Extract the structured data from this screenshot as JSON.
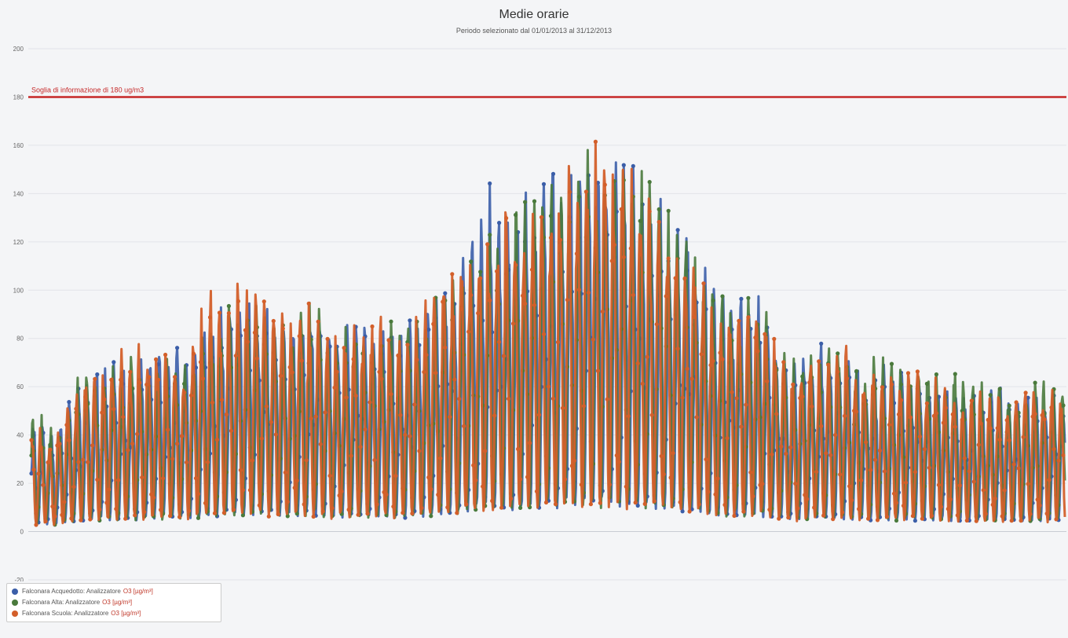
{
  "chart_data": {
    "type": "line",
    "title": "Medie orarie",
    "subtitle": "Periodo selezionato dal 01/01/2013 al 31/12/2013",
    "ylim": [
      -20,
      200
    ],
    "y_ticks": [
      -20,
      0,
      20,
      40,
      60,
      80,
      100,
      120,
      140,
      160,
      180,
      200
    ],
    "grid": true,
    "legend_position": "bottom-left",
    "threshold": {
      "value": 180,
      "label": "Soglia di informazione di 180 ug/m3",
      "color": "#c62828"
    },
    "x_range": [
      "01/01/2013",
      "31/12/2013"
    ],
    "series": [
      {
        "name": "Falconara Acquedotto: Analizzatore",
        "unit": "O3 [µg/m³]",
        "color": "#3b5ea8",
        "daily_max_profile": [
          48,
          44,
          70,
          73,
          72,
          80,
          78,
          96,
          100,
          106,
          92,
          104,
          88,
          90,
          90,
          92,
          100,
          112,
          150,
          140,
          147,
          154,
          172,
          168,
          153,
          140,
          130,
          104,
          100,
          99,
          70,
          78,
          80,
          72,
          70,
          72,
          70,
          62,
          60,
          62,
          62,
          64
        ]
      },
      {
        "name": "Falconara Alta: Analizzatore",
        "unit": "O3 [µg/m³]",
        "color": "#4a7a3c",
        "daily_max_profile": [
          50,
          46,
          70,
          72,
          74,
          78,
          78,
          96,
          100,
          104,
          92,
          100,
          88,
          88,
          90,
          90,
          100,
          112,
          128,
          138,
          145,
          152,
          162,
          156,
          155,
          150,
          128,
          104,
          100,
          99,
          72,
          78,
          80,
          75,
          72,
          74,
          72,
          66,
          62,
          64,
          66,
          64
        ]
      },
      {
        "name": "Falconara Scuola: Analizzatore",
        "unit": "O3 [µg/m³]",
        "color": "#d35f2a",
        "daily_max_profile": [
          46,
          42,
          66,
          74,
          80,
          80,
          76,
          100,
          102,
          106,
          90,
          100,
          86,
          88,
          90,
          90,
          104,
          118,
          130,
          140,
          145,
          155,
          168,
          158,
          152,
          142,
          124,
          104,
          100,
          97,
          68,
          76,
          80,
          72,
          68,
          70,
          66,
          60,
          58,
          60,
          62,
          62
        ]
      }
    ]
  }
}
